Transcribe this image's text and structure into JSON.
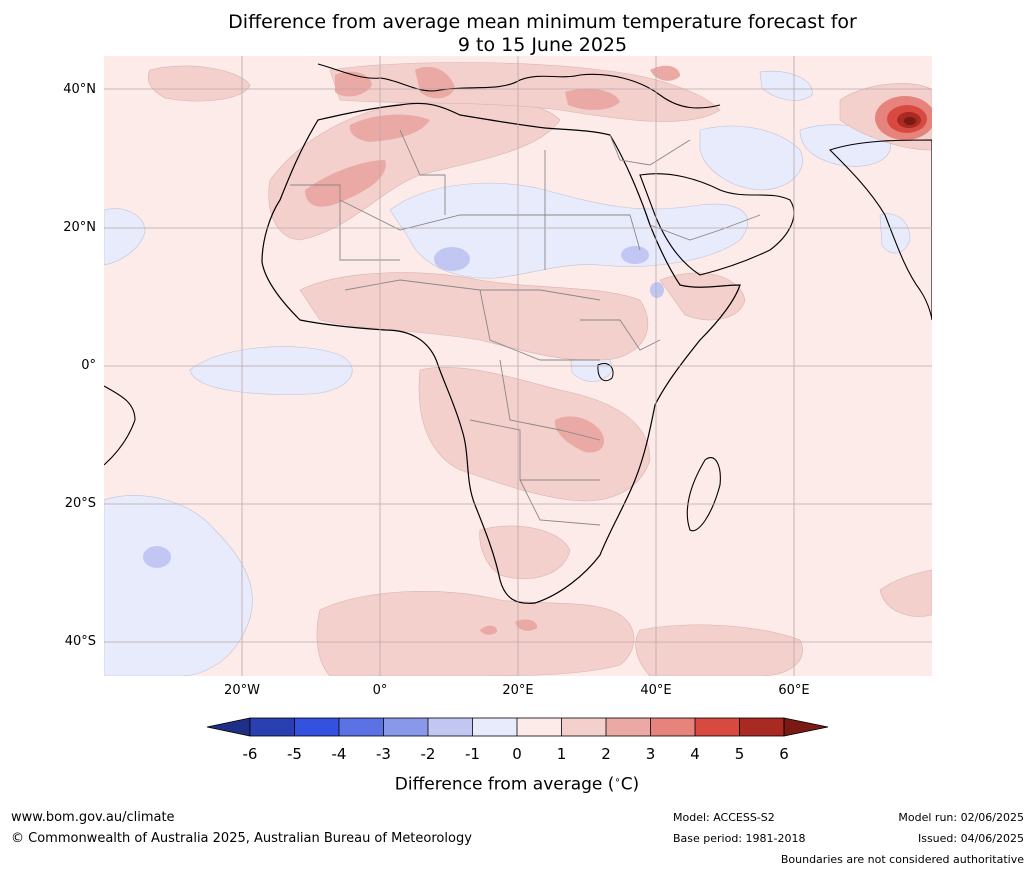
{
  "title": {
    "line1": "Difference from average mean minimum temperature forecast for",
    "line2": "9 to 15 June 2025"
  },
  "map": {
    "region": "Africa",
    "lat_labels": [
      "40°N",
      "20°N",
      "0°",
      "20°S",
      "40°S"
    ],
    "lon_labels": [
      "20°W",
      "0°",
      "20°E",
      "40°E",
      "60°E"
    ],
    "colors": {
      "ocean_base": "#fcebe9",
      "land_base": "#fcebe9",
      "gridline": "#b9a9a9",
      "coastline": "#000000",
      "border": "#888888"
    }
  },
  "colorbar": {
    "label": "Difference from average ($^\\circ$C)",
    "label_text": "Difference from average (",
    "label_unit": "C)",
    "ticks": [
      "-6",
      "-5",
      "-4",
      "-3",
      "-2",
      "-1",
      "0",
      "1",
      "2",
      "3",
      "4",
      "5",
      "6"
    ],
    "colors": [
      "#1f2f86",
      "#2a3fb1",
      "#3452e0",
      "#5c72e4",
      "#8998e8",
      "#c1c7f2",
      "#e8ebfb",
      "#fcebe9",
      "#f4d0cd",
      "#eaa9a4",
      "#e5837c",
      "#d84a40",
      "#a92a22",
      "#7b1a14"
    ]
  },
  "footer": {
    "website": "www.bom.gov.au/climate",
    "copyright": "© Commonwealth of Australia 2025, Australian Bureau of Meteorology",
    "model": "Model: ACCESS-S2",
    "base_period": "Base period: 1981-2018",
    "model_run": "Model run: 02/06/2025",
    "issued": "Issued: 04/06/2025",
    "disclaimer": "Boundaries are not considered authoritative"
  }
}
